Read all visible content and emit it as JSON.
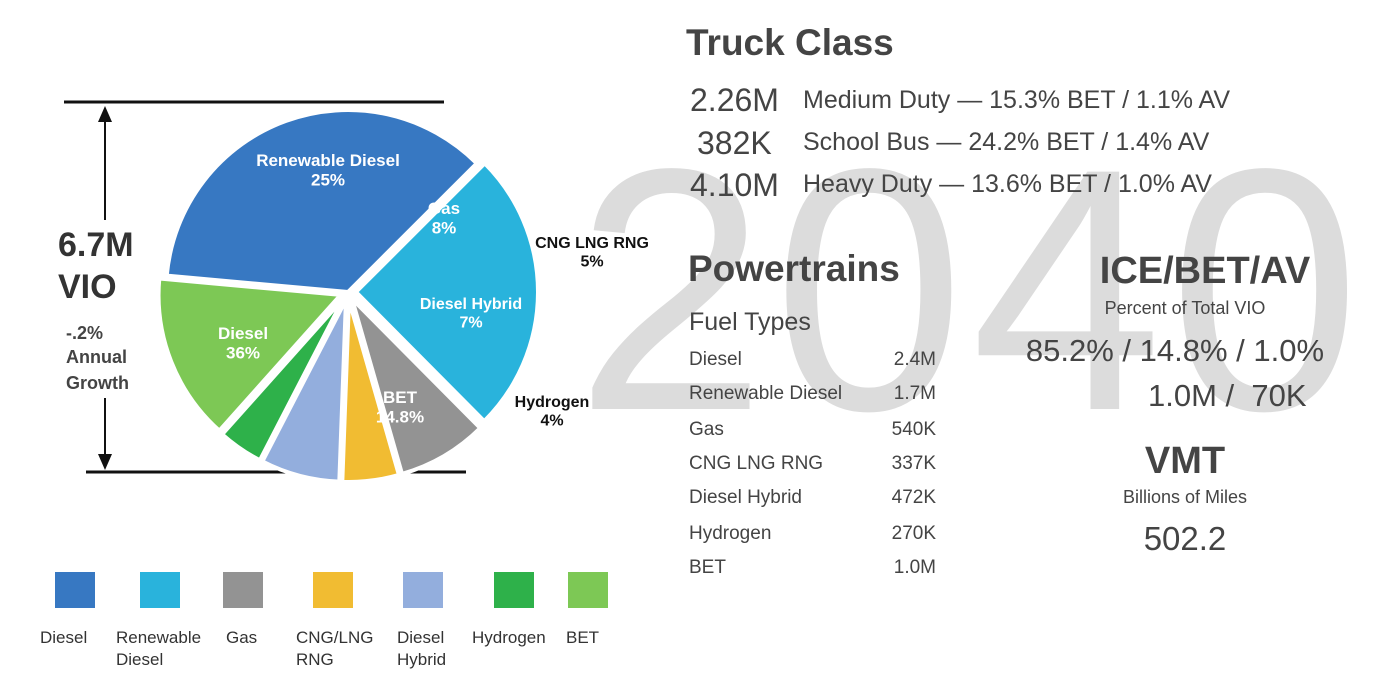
{
  "watermark": "2040",
  "vio": {
    "total": "6.7M",
    "unit": "VIO",
    "growth_value": "-.2%",
    "growth_line1": "Annual",
    "growth_line2": "Growth"
  },
  "chart_data": {
    "type": "pie",
    "slices": [
      {
        "name": "Renewable Diesel",
        "label_line1": "Renewable Diesel",
        "label_line2": "25%",
        "value": 25,
        "color": "#29b3dc"
      },
      {
        "name": "Gas",
        "label_line1": "Gas",
        "label_line2": "8%",
        "value": 8,
        "color": "#939393"
      },
      {
        "name": "CNG LNG RNG",
        "label_line1": "CNG LNG RNG",
        "label_line2": "5%",
        "value": 5,
        "color": "#f1bc32"
      },
      {
        "name": "Diesel Hybrid",
        "label_line1": "Diesel Hybrid",
        "label_line2": "7%",
        "value": 7,
        "color": "#93aedd"
      },
      {
        "name": "Hydrogen",
        "label_line1": "Hydrogen",
        "label_line2": "4%",
        "value": 4,
        "color": "#2eb14a"
      },
      {
        "name": "BET",
        "label_line1": "BET",
        "label_line2": "14.8%",
        "value": 14.8,
        "color": "#7dc855"
      },
      {
        "name": "Diesel",
        "label_line1": "Diesel",
        "label_line2": "36%",
        "value": 36,
        "color": "#3778c2"
      }
    ],
    "legend": [
      {
        "line1": "Diesel",
        "line2": "",
        "color": "#3778c2"
      },
      {
        "line1": "Renewable",
        "line2": "Diesel",
        "color": "#29b3dc"
      },
      {
        "line1": "Gas",
        "line2": "",
        "color": "#939393"
      },
      {
        "line1": "CNG/LNG",
        "line2": "RNG",
        "color": "#f1bc32"
      },
      {
        "line1": "Diesel",
        "line2": "Hybrid",
        "color": "#93aedd"
      },
      {
        "line1": "Hydrogen",
        "line2": "",
        "color": "#2eb14a"
      },
      {
        "line1": "BET",
        "line2": "",
        "color": "#7dc855"
      }
    ]
  },
  "truck_class": {
    "title": "Truck Class",
    "rows": [
      {
        "count": "2.26M",
        "desc": "Medium Duty — 15.3% BET / 1.1% AV"
      },
      {
        "count": "382K",
        "desc": "School Bus — 24.2% BET / 1.4% AV"
      },
      {
        "count": "4.10M",
        "desc": "Heavy Duty — 13.6% BET / 1.0% AV"
      }
    ]
  },
  "powertrains": {
    "title": "Powertrains",
    "subtitle": "Fuel Types",
    "rows": [
      {
        "label": "Diesel",
        "value": "2.4M"
      },
      {
        "label": "Renewable Diesel",
        "value": "1.7M"
      },
      {
        "label": "Gas",
        "value": "540K"
      },
      {
        "label": "CNG LNG RNG",
        "value": "337K"
      },
      {
        "label": "Diesel Hybrid",
        "value": "472K"
      },
      {
        "label": "Hydrogen",
        "value": "270K"
      },
      {
        "label": "BET",
        "value": "1.0M"
      }
    ]
  },
  "ice_bet_av": {
    "title": "ICE/BET/AV",
    "subtitle": "Percent of Total VIO",
    "percents": "85.2% / 14.8% / 1.0%",
    "counts": "1.0M /  70K"
  },
  "vmt": {
    "title": "VMT",
    "subtitle": "Billions of Miles",
    "value": "502.2"
  }
}
